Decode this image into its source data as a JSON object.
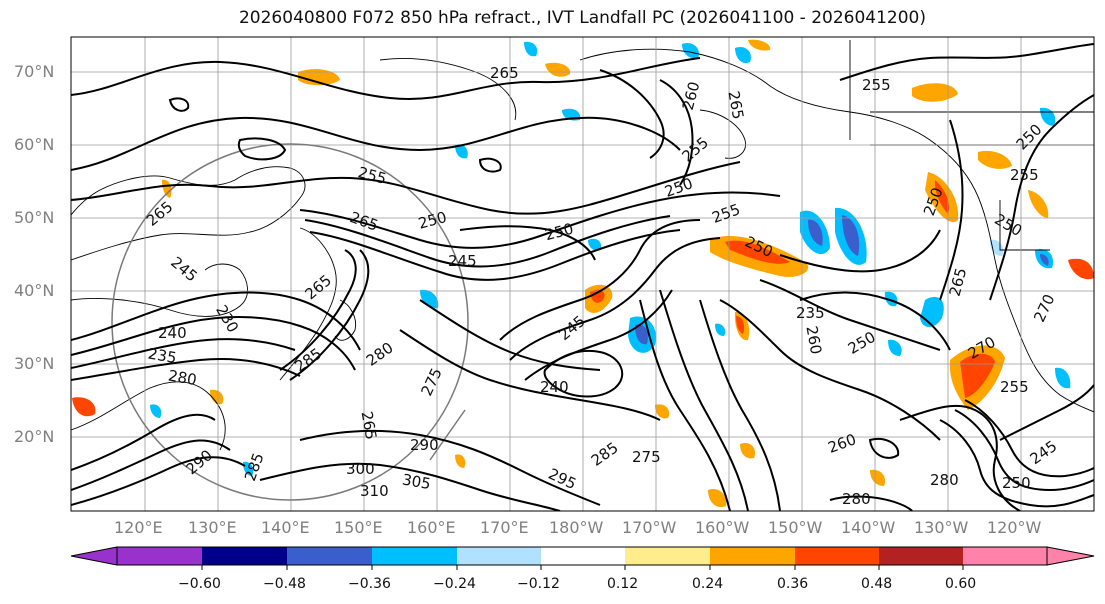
{
  "title": "2026040800 F072 850 hPa refract., IVT Landfall PC (2026041100 - 2026041200)",
  "latitude_labels": [
    "70°N",
    "60°N",
    "50°N",
    "40°N",
    "30°N",
    "20°N"
  ],
  "longitude_labels": [
    "120°E",
    "130°E",
    "140°E",
    "150°E",
    "160°E",
    "170°E",
    "180°W",
    "170°W",
    "160°W",
    "150°W",
    "140°W",
    "130°W",
    "120°W"
  ],
  "colorbar": {
    "tick_labels": [
      "−0.60",
      "−0.48",
      "−0.36",
      "−0.24",
      "−0.12",
      "0.12",
      "0.24",
      "0.36",
      "0.48",
      "0.60"
    ],
    "colors": [
      "#9932cc",
      "#00008b",
      "#3a5fcd",
      "#00bfff",
      "#b0e2ff",
      "#ffffff",
      "#ffec8b",
      "#ffa500",
      "#ff4500",
      "#b22222",
      "#ff82ab"
    ]
  },
  "contour_labels": [
    "265",
    "255",
    "260",
    "265",
    "255",
    "255",
    "265",
    "250",
    "265",
    "250",
    "255",
    "250",
    "250",
    "245",
    "250",
    "250",
    "255",
    "245",
    "265",
    "240",
    "230",
    "235",
    "265",
    "270",
    "285",
    "280",
    "275",
    "245",
    "240",
    "235",
    "260",
    "250",
    "270",
    "255",
    "265",
    "290",
    "285",
    "275",
    "295",
    "300",
    "305",
    "310",
    "280",
    "260",
    "250",
    "245",
    "250",
    "280",
    "290",
    "280",
    "285"
  ]
}
